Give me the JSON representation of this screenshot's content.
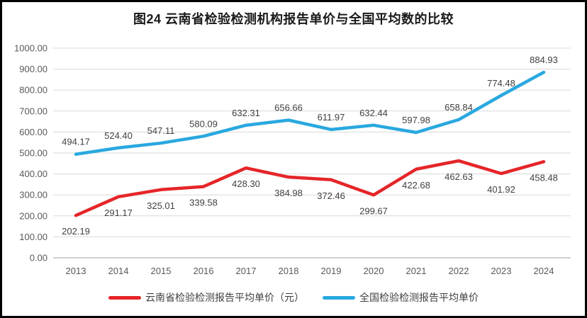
{
  "title": "图24 云南省检验检测机构报告单价与全国平均数的比较",
  "colors": {
    "yunnan": "#e52528",
    "national": "#29a8df",
    "gridline": "#d9d9d9",
    "axis_line": "#bfbfbf",
    "axis_text": "#595959",
    "label_text": "#3f3f3f",
    "title_text": "#1a1a1a",
    "frame_border": "#000000"
  },
  "chart_data": {
    "type": "line",
    "title": "图24 云南省检验检测机构报告单价与全国平均数的比较",
    "categories": [
      "2013",
      "2014",
      "2015",
      "2016",
      "2017",
      "2018",
      "2019",
      "2020",
      "2021",
      "2022",
      "2023",
      "2024"
    ],
    "series": [
      {
        "name": "云南省检验检测报告平均单价（元）",
        "color_key": "yunnan",
        "label_position": "below",
        "values": [
          202.19,
          291.17,
          325.01,
          339.58,
          428.3,
          384.98,
          372.46,
          299.67,
          422.68,
          462.63,
          401.92,
          458.48
        ]
      },
      {
        "name": "全国检验检测报告平均单价",
        "color_key": "national",
        "label_position": "above",
        "values": [
          494.17,
          524.4,
          547.11,
          580.09,
          632.31,
          656.66,
          611.97,
          632.44,
          597.98,
          658.84,
          774.48,
          884.93
        ]
      }
    ],
    "xlabel": "",
    "ylabel": "",
    "ylim": [
      0,
      1000
    ],
    "ytick_step": 100,
    "ytick_decimals": 2,
    "value_label_decimals": 2,
    "grid": true,
    "legend_position": "bottom"
  },
  "legend": {
    "items": [
      {
        "label": "云南省检验检测报告平均单价（元）",
        "color_key": "yunnan"
      },
      {
        "label": "全国检验检测报告平均单价",
        "color_key": "national"
      }
    ]
  }
}
